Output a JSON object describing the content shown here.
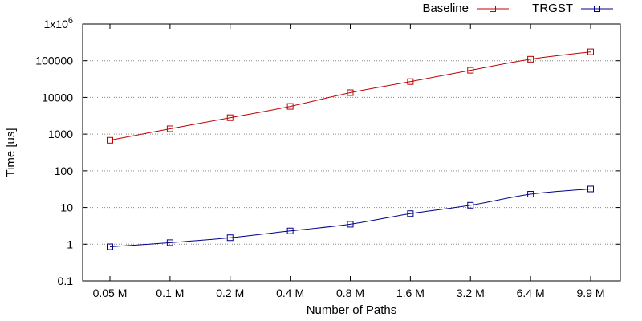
{
  "chart_data": {
    "type": "line",
    "xlabel": "Number of Paths",
    "ylabel": "Time [us]",
    "categories": [
      "0.05 M",
      "0.1 M",
      "0.2 M",
      "0.4 M",
      "0.8 M",
      "1.6 M",
      "3.2 M",
      "6.4 M",
      "9.9 M"
    ],
    "y_scale": "log",
    "ylim": [
      0.1,
      1000000
    ],
    "y_ticks": [
      {
        "value": 1000000,
        "base": "1x10",
        "exp": "6"
      },
      {
        "value": 100000,
        "label": "100000"
      },
      {
        "value": 10000,
        "label": "10000"
      },
      {
        "value": 1000,
        "label": "1000"
      },
      {
        "value": 100,
        "label": "100"
      },
      {
        "value": 10,
        "label": "10"
      },
      {
        "value": 1,
        "label": "1"
      },
      {
        "value": 0.1,
        "label": "0.1"
      }
    ],
    "grid": "horizontal-dotted",
    "legend_position": "top-right",
    "series": [
      {
        "name": "Baseline",
        "color": "#c00000",
        "marker": "square",
        "values": [
          680,
          1400,
          2800,
          5700,
          13500,
          27000,
          55000,
          110000,
          175000
        ]
      },
      {
        "name": "TRGST",
        "color": "#00008b",
        "marker": "square",
        "values": [
          0.85,
          1.1,
          1.5,
          2.3,
          3.5,
          6.8,
          11.5,
          23,
          32
        ]
      }
    ]
  }
}
